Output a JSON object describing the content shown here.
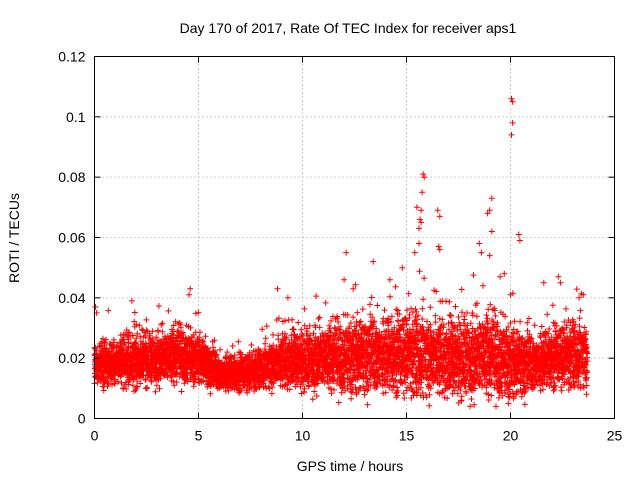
{
  "chart_data": {
    "type": "scatter",
    "title": "Day 170 of 2017, Rate Of TEC Index for receiver aps1",
    "xlabel": "GPS time / hours",
    "ylabel": "ROTI / TECUs",
    "xlim": [
      0,
      25
    ],
    "ylim": [
      0,
      0.12
    ],
    "x_ticks": [
      0,
      5,
      10,
      15,
      20,
      25
    ],
    "y_ticks": [
      0,
      0.02,
      0.04,
      0.06,
      0.08,
      0.1,
      0.12
    ],
    "x_tick_labels": [
      "0",
      "5",
      "10",
      "15",
      "20",
      "25"
    ],
    "y_tick_labels": [
      "0",
      "0.02",
      "0.04",
      "0.06",
      "0.08",
      "0.1",
      "0.12"
    ],
    "grid": true,
    "marker": "+",
    "series": [
      {
        "name": "aps1",
        "color": "#ff0000",
        "coverage_hours": [
          0,
          23.7
        ],
        "base_envelope": [
          [
            0,
            0.018
          ],
          [
            2,
            0.019
          ],
          [
            4,
            0.021
          ],
          [
            5,
            0.02
          ],
          [
            6,
            0.015
          ],
          [
            7.5,
            0.015
          ],
          [
            9,
            0.019
          ],
          [
            11,
            0.02
          ],
          [
            13,
            0.021
          ],
          [
            15,
            0.021
          ],
          [
            17,
            0.02
          ],
          [
            19,
            0.021
          ],
          [
            20,
            0.019
          ],
          [
            21,
            0.018
          ],
          [
            22,
            0.02
          ],
          [
            23.7,
            0.021
          ]
        ],
        "spread_envelope": [
          [
            0,
            0.006
          ],
          [
            4,
            0.008
          ],
          [
            6,
            0.005
          ],
          [
            8,
            0.005
          ],
          [
            9,
            0.008
          ],
          [
            12,
            0.01
          ],
          [
            15,
            0.011
          ],
          [
            19,
            0.012
          ],
          [
            21,
            0.008
          ],
          [
            23.7,
            0.009
          ]
        ],
        "notable_points": [
          {
            "x": 0.05,
            "y": 0.037
          },
          {
            "x": 0.1,
            "y": 0.035
          },
          {
            "x": 1.8,
            "y": 0.039
          },
          {
            "x": 4.6,
            "y": 0.043
          },
          {
            "x": 4.55,
            "y": 0.041
          },
          {
            "x": 8.8,
            "y": 0.043
          },
          {
            "x": 9.3,
            "y": 0.04
          },
          {
            "x": 12.1,
            "y": 0.055
          },
          {
            "x": 12.0,
            "y": 0.046
          },
          {
            "x": 13.4,
            "y": 0.052
          },
          {
            "x": 14.2,
            "y": 0.046
          },
          {
            "x": 14.8,
            "y": 0.05
          },
          {
            "x": 15.4,
            "y": 0.055
          },
          {
            "x": 15.6,
            "y": 0.063
          },
          {
            "x": 15.65,
            "y": 0.066
          },
          {
            "x": 15.7,
            "y": 0.069
          },
          {
            "x": 15.75,
            "y": 0.075
          },
          {
            "x": 15.8,
            "y": 0.081
          },
          {
            "x": 15.85,
            "y": 0.08
          },
          {
            "x": 15.5,
            "y": 0.07
          },
          {
            "x": 15.6,
            "y": 0.058
          },
          {
            "x": 15.7,
            "y": 0.065
          },
          {
            "x": 16.5,
            "y": 0.069
          },
          {
            "x": 16.6,
            "y": 0.067
          },
          {
            "x": 16.55,
            "y": 0.057
          },
          {
            "x": 16.6,
            "y": 0.056
          },
          {
            "x": 18.5,
            "y": 0.058
          },
          {
            "x": 18.6,
            "y": 0.055
          },
          {
            "x": 18.9,
            "y": 0.068
          },
          {
            "x": 19.0,
            "y": 0.069
          },
          {
            "x": 19.1,
            "y": 0.073
          },
          {
            "x": 19.1,
            "y": 0.062
          },
          {
            "x": 19.0,
            "y": 0.054
          },
          {
            "x": 19.5,
            "y": 0.047
          },
          {
            "x": 19.7,
            "y": 0.048
          },
          {
            "x": 20.05,
            "y": 0.106
          },
          {
            "x": 20.1,
            "y": 0.105
          },
          {
            "x": 20.1,
            "y": 0.098
          },
          {
            "x": 20.05,
            "y": 0.094
          },
          {
            "x": 20.4,
            "y": 0.061
          },
          {
            "x": 20.45,
            "y": 0.059
          },
          {
            "x": 21.6,
            "y": 0.045
          },
          {
            "x": 22.3,
            "y": 0.047
          },
          {
            "x": 22.4,
            "y": 0.045
          },
          {
            "x": 23.3,
            "y": 0.04
          },
          {
            "x": 23.5,
            "y": 0.041
          }
        ]
      }
    ]
  }
}
